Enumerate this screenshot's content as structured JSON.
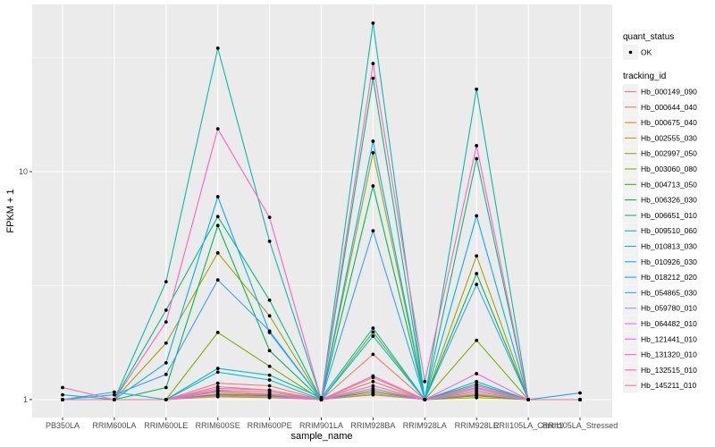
{
  "chart_data": {
    "type": "line",
    "xlabel": "sample_name",
    "ylabel": "FPKM + 1",
    "yscale": "log10",
    "ylim": [
      0.85,
      58
    ],
    "yticks": [
      1,
      10
    ],
    "ytick_labels": [
      "1",
      "10"
    ],
    "grid": true,
    "legend_placement": "right",
    "categories": [
      "PB350LA",
      "RRIM600LA",
      "RRIM600LE",
      "RRIM600SE",
      "RRIM600PE",
      "RRIM901LA",
      "RRIM928BA",
      "RRIM928LA",
      "RRIM928LE",
      "RRII105LA_Control",
      "RRII105LA_Stressed"
    ],
    "shape_legend": {
      "title": "quant_status",
      "entries": [
        "OK"
      ]
    },
    "color_legend_title": "tracking_id",
    "series": [
      {
        "name": "Hb_000149_090",
        "color": "#F8766D",
        "values": [
          1.0,
          1.0,
          1.0,
          1.18,
          1.15,
          1.0,
          1.58,
          1.0,
          1.15,
          1.0,
          1.0
        ]
      },
      {
        "name": "Hb_000644_040",
        "color": "#EA8331",
        "values": [
          1.0,
          1.0,
          1.0,
          1.1,
          1.08,
          1.0,
          1.2,
          1.0,
          1.08,
          1.0,
          1.0
        ]
      },
      {
        "name": "Hb_000675_040",
        "color": "#D89000",
        "values": [
          1.0,
          1.0,
          1.0,
          1.06,
          1.05,
          1.0,
          1.1,
          1.0,
          1.05,
          1.0,
          1.0
        ]
      },
      {
        "name": "Hb_002555_030",
        "color": "#C09B00",
        "values": [
          1.0,
          1.0,
          1.0,
          1.03,
          1.02,
          1.0,
          1.05,
          1.0,
          1.02,
          1.0,
          1.0
        ]
      },
      {
        "name": "Hb_002997_050",
        "color": "#A3A500",
        "values": [
          1.0,
          1.0,
          1.77,
          4.4,
          2.33,
          1.0,
          12.1,
          1.0,
          4.27,
          1.0,
          1.0
        ]
      },
      {
        "name": "Hb_003060_080",
        "color": "#7CAE00",
        "values": [
          1.0,
          1.0,
          1.0,
          1.97,
          1.4,
          1.0,
          1.98,
          1.0,
          1.82,
          1.0,
          1.0
        ]
      },
      {
        "name": "Hb_004713_050",
        "color": "#39B600",
        "values": [
          1.0,
          1.0,
          1.0,
          1.05,
          1.04,
          1.0,
          1.08,
          1.0,
          1.04,
          1.0,
          1.0
        ]
      },
      {
        "name": "Hb_006326_030",
        "color": "#00BB4E",
        "values": [
          1.0,
          1.0,
          1.13,
          5.8,
          1.64,
          1.0,
          8.65,
          1.0,
          3.57,
          1.0,
          1.0
        ]
      },
      {
        "name": "Hb_006651_010",
        "color": "#00BF7D",
        "values": [
          1.0,
          1.0,
          2.47,
          6.35,
          2.73,
          1.0,
          25.7,
          1.0,
          11.4,
          1.0,
          1.0
        ]
      },
      {
        "name": "Hb_009510_060",
        "color": "#00C1A3",
        "values": [
          1.05,
          1.0,
          3.29,
          34.8,
          4.95,
          1.0,
          44.8,
          1.0,
          23.0,
          1.0,
          1.0
        ]
      },
      {
        "name": "Hb_010813_030",
        "color": "#00BFC4",
        "values": [
          1.0,
          1.0,
          1.0,
          1.37,
          1.28,
          1.02,
          2.06,
          1.0,
          1.2,
          1.0,
          1.0
        ]
      },
      {
        "name": "Hb_010926_030",
        "color": "#00BAE0",
        "values": [
          1.0,
          1.08,
          1.0,
          1.32,
          1.22,
          1.0,
          1.9,
          1.0,
          1.17,
          1.0,
          1.0
        ]
      },
      {
        "name": "Hb_018212_020",
        "color": "#00B0F6",
        "values": [
          1.0,
          1.0,
          1.45,
          7.76,
          1.97,
          1.0,
          13.6,
          1.0,
          6.4,
          1.0,
          1.07
        ]
      },
      {
        "name": "Hb_054865_030",
        "color": "#35A2FF",
        "values": [
          1.0,
          1.05,
          1.29,
          3.35,
          2.0,
          1.0,
          5.5,
          1.0,
          3.2,
          1.0,
          1.0
        ]
      },
      {
        "name": "Hb_059780_010",
        "color": "#9590FF",
        "values": [
          1.0,
          1.0,
          1.0,
          1.08,
          1.06,
          1.0,
          1.12,
          1.0,
          1.1,
          1.0,
          1.0
        ]
      },
      {
        "name": "Hb_064482_010",
        "color": "#C77CFF",
        "values": [
          1.0,
          1.0,
          1.0,
          1.04,
          1.03,
          1.0,
          1.06,
          1.0,
          1.06,
          1.0,
          1.0
        ]
      },
      {
        "name": "Hb_121441_010",
        "color": "#E76BF3",
        "values": [
          1.0,
          1.0,
          1.0,
          1.12,
          1.1,
          1.0,
          1.15,
          1.0,
          1.13,
          1.0,
          1.0
        ]
      },
      {
        "name": "Hb_131320_010",
        "color": "#FA62DB",
        "values": [
          1.0,
          1.0,
          1.0,
          1.09,
          1.05,
          1.0,
          1.25,
          1.0,
          1.3,
          1.0,
          1.0
        ]
      },
      {
        "name": "Hb_132515_010",
        "color": "#FF62BC",
        "values": [
          1.13,
          1.0,
          2.19,
          15.4,
          6.3,
          1.0,
          29.8,
          1.2,
          13.0,
          1.0,
          1.0
        ]
      },
      {
        "name": "Hb_145211_010",
        "color": "#FF6C91",
        "values": [
          1.0,
          1.0,
          1.0,
          1.14,
          1.1,
          1.0,
          1.27,
          1.0,
          1.12,
          1.0,
          1.0
        ]
      }
    ]
  }
}
